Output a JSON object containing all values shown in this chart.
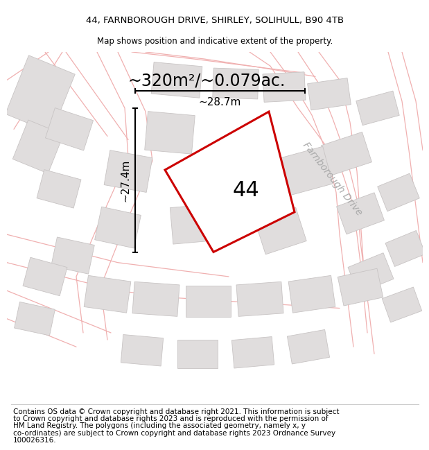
{
  "title_line1": "44, FARNBOROUGH DRIVE, SHIRLEY, SOLIHULL, B90 4TB",
  "title_line2": "Map shows position and indicative extent of the property.",
  "area_label": "~320m²/~0.079ac.",
  "width_label": "~28.7m",
  "height_label": "~27.4m",
  "number_label": "44",
  "road_label": "Farnborough Drive",
  "footer_lines": [
    "Contains OS data © Crown copyright and database right 2021. This information is subject",
    "to Crown copyright and database rights 2023 and is reproduced with the permission of",
    "HM Land Registry. The polygons (including the associated geometry, namely x, y",
    "co-ordinates) are subject to Crown copyright and database rights 2023 Ordnance Survey",
    "100026316."
  ],
  "map_bg": "#f9f8f8",
  "plot_color": "#cc0000",
  "road_color": "#f0b0b0",
  "road_outline_color": "#d4c8c8",
  "building_fill": "#e0dddd",
  "building_edge": "#c8c4c4",
  "text_dark": "#111111",
  "text_gray": "#aaaaaa",
  "title_fs": 9.5,
  "subtitle_fs": 8.5,
  "area_fs": 17,
  "label_fs": 11,
  "number_fs": 22,
  "road_name_fs": 10,
  "footer_fs": 7.5
}
